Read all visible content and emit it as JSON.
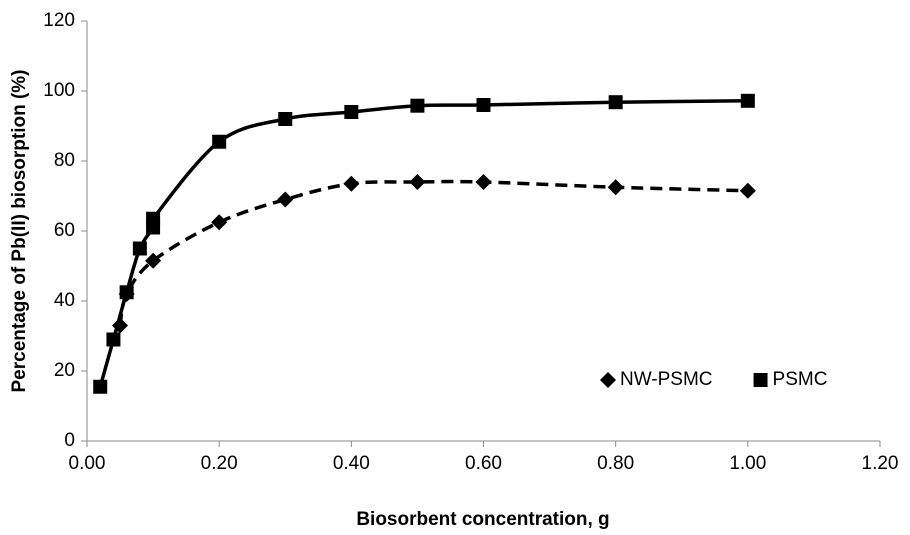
{
  "chart_data": {
    "type": "line",
    "xlabel": "Biosorbent concentration, g",
    "ylabel": "Percentage of Pb(II) biosorption (%)",
    "xlim": [
      0,
      1.2
    ],
    "xticks": [
      {
        "value": 0,
        "label": "0.00"
      },
      {
        "value": 0.2,
        "label": "0.20"
      },
      {
        "value": 0.4,
        "label": "0.40"
      },
      {
        "value": 0.6,
        "label": "0.60"
      },
      {
        "value": 0.8,
        "label": "0.80"
      },
      {
        "value": 1.0,
        "label": "1.00"
      },
      {
        "value": 1.2,
        "label": "1.20"
      }
    ],
    "ylim": [
      0,
      120
    ],
    "yticks": [
      0,
      20,
      40,
      60,
      80,
      100,
      120
    ],
    "grid": false,
    "legend": "lower right",
    "series": [
      {
        "name": "NW-PSMC",
        "color": "#000000",
        "dashed": true,
        "marker": "diamond",
        "x": [
          0.05,
          0.06,
          0.1,
          0.2,
          0.3,
          0.4,
          0.5,
          0.6,
          0.8,
          1.0
        ],
        "values": [
          33,
          42,
          51.5,
          62.5,
          69,
          73.5,
          74,
          74,
          72.5,
          71.5
        ]
      },
      {
        "name": "PSMC",
        "color": "#000000",
        "dashed": false,
        "marker": "square",
        "x": [
          0.02,
          0.04,
          0.06,
          0.08,
          0.1,
          0.1,
          0.2,
          0.3,
          0.4,
          0.5,
          0.6,
          0.8,
          1.0
        ],
        "values": [
          15.5,
          29,
          42.5,
          55,
          61,
          63.5,
          85.5,
          92,
          94,
          95.8,
          96,
          96.8,
          97.2
        ]
      }
    ]
  }
}
